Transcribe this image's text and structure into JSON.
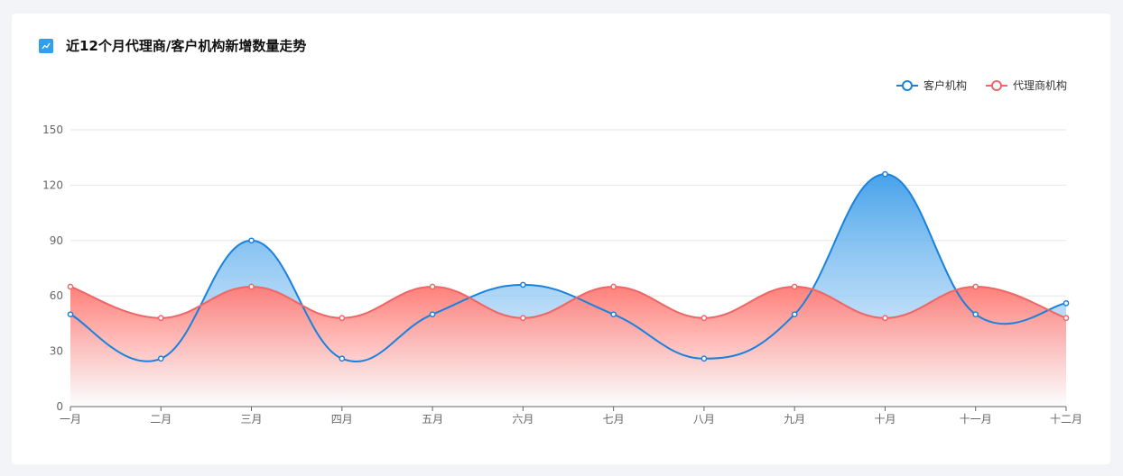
{
  "header": {
    "title": "近12个月代理商/客户机构新增数量走势",
    "icon": "line-chart-icon"
  },
  "colors": {
    "customer": "#1a82dc",
    "agent": "#ee6666",
    "grid": "#e6e6e6",
    "axis": "#666666"
  },
  "chart_data": {
    "type": "area",
    "title": "近12个月代理商/客户机构新增数量走势",
    "categories": [
      "一月",
      "二月",
      "三月",
      "四月",
      "五月",
      "六月",
      "七月",
      "八月",
      "九月",
      "十月",
      "十一月",
      "十二月"
    ],
    "yticks": [
      0,
      30,
      60,
      90,
      120,
      150
    ],
    "ylim": [
      0,
      150
    ],
    "legend_position": "top-right",
    "grid": true,
    "series": [
      {
        "name": "客户机构",
        "values": [
          50,
          26,
          90,
          26,
          50,
          66,
          50,
          26,
          50,
          126,
          50,
          56
        ]
      },
      {
        "name": "代理商机构",
        "values": [
          65,
          48,
          65,
          48,
          65,
          48,
          65,
          48,
          65,
          48,
          65,
          48
        ]
      }
    ]
  }
}
